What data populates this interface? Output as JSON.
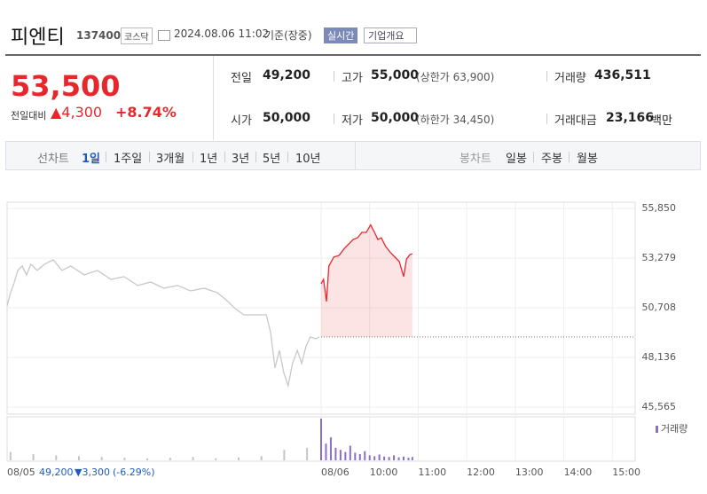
{
  "header": {
    "title": "피엔티",
    "code": "137400",
    "market": "코스닥",
    "datetime": "2024.08.06 11:02",
    "basis": "기준(장중)",
    "realtime": "실시간",
    "company": "기업개요"
  },
  "quote": {
    "price": "53,500",
    "change_label": "전일대비",
    "change": "▲4,300",
    "rate": "+8.74%",
    "cells": [
      {
        "label": "전일",
        "value": "49,200"
      },
      {
        "label": "고가",
        "value": "55,000",
        "note": "(상한가 63,900)"
      },
      {
        "label": "거래량",
        "value": "436,511"
      },
      {
        "label": "시가",
        "value": "50,000"
      },
      {
        "label": "저가",
        "value": "50,000",
        "note": "(하한가 34,450)"
      },
      {
        "label": "거래대금",
        "value": "23,166",
        "note": "백만"
      }
    ]
  },
  "tabs": {
    "line": "선차트",
    "line_periods": [
      "1일",
      "1주일",
      "3개월",
      "1년",
      "3년",
      "5년",
      "10년"
    ],
    "candle": "봉차트",
    "candle_periods": [
      "일봉",
      "주봉",
      "월봉"
    ]
  },
  "prev_day": {
    "close": "49,200",
    "change": "▼3,300",
    "rate": "(-6.29%)"
  },
  "chart_data": {
    "type": "line",
    "xlim": [
      -6.47,
      6.47
    ],
    "ylim": [
      45565,
      55850
    ],
    "xticks": [
      {
        "value": -6.47,
        "label": "08/05"
      },
      {
        "value": 0,
        "label": "08/06"
      },
      {
        "value": 1,
        "label": "10:00"
      },
      {
        "value": 2,
        "label": "11:00"
      },
      {
        "value": 3,
        "label": "12:00"
      },
      {
        "value": 4,
        "label": "13:00"
      },
      {
        "value": 5,
        "label": "14:00"
      },
      {
        "value": 6,
        "label": "15:00"
      }
    ],
    "yticks": [
      {
        "value": 55850,
        "label": "55,850"
      },
      {
        "value": 53279,
        "label": "53,279"
      },
      {
        "value": 50708,
        "label": "50,708"
      },
      {
        "value": 48136,
        "label": "48,136"
      },
      {
        "value": 45565,
        "label": "45,565"
      }
    ],
    "grid": true,
    "baseline": 49200,
    "series": [
      {
        "color": "#c8c8c8",
        "fill": false,
        "x": [
          -6.47,
          -6.4,
          -6.33,
          -6.25,
          -6.16,
          -6.07,
          -5.98,
          -5.85,
          -5.7,
          -5.52,
          -5.34,
          -5.16,
          -4.88,
          -4.61,
          -4.33,
          -4.06,
          -3.78,
          -3.51,
          -3.24,
          -2.96,
          -2.69,
          -2.41,
          -2.14,
          -1.96,
          -1.77,
          -1.59,
          -1.32,
          -1.13,
          -1.04,
          -0.95,
          -0.86,
          -0.77,
          -0.68,
          -0.59,
          -0.49,
          -0.4,
          -0.31,
          -0.22,
          -0.11,
          -0.04
        ],
        "values": [
          50800,
          51490,
          51950,
          52640,
          52870,
          52410,
          52960,
          52640,
          52960,
          53190,
          52640,
          52870,
          52410,
          52640,
          52180,
          52320,
          51860,
          52040,
          51720,
          51860,
          51580,
          51720,
          51490,
          51120,
          50660,
          50340,
          50340,
          50340,
          49420,
          47590,
          48500,
          47360,
          46670,
          47820,
          48500,
          47820,
          48730,
          49200,
          49100,
          49200
        ]
      },
      {
        "color": "#e6282d",
        "fill": true,
        "x": [
          0,
          0.05,
          0.11,
          0.16,
          0.26,
          0.37,
          0.48,
          0.57,
          0.66,
          0.75,
          0.84,
          0.93,
          1.02,
          1.1,
          1.17,
          1.24,
          1.33,
          1.43,
          1.52,
          1.61,
          1.7,
          1.76,
          1.83,
          1.88
        ],
        "values": [
          51950,
          52180,
          51030,
          52870,
          53330,
          53420,
          53780,
          54010,
          54240,
          54330,
          54610,
          54610,
          55000,
          54610,
          54240,
          54330,
          53880,
          53560,
          53330,
          53100,
          52320,
          53230,
          53460,
          53500
        ]
      }
    ],
    "volume": {
      "label": "거래량",
      "ylim": [
        0,
        100
      ],
      "series": [
        {
          "color": "#c4c4c4",
          "x": [
            -6.4,
            -5.93,
            -5.46,
            -4.99,
            -4.52,
            -4.05,
            -3.58,
            -3.11,
            -2.64,
            -2.17,
            -1.7,
            -1.23,
            -0.76,
            -0.29
          ],
          "values": [
            20,
            15,
            12,
            10,
            8,
            6,
            5,
            6,
            8,
            5,
            7,
            10,
            25,
            30
          ]
        },
        {
          "color": "#8a6fc6",
          "x": [
            0,
            0.1,
            0.2,
            0.3,
            0.4,
            0.5,
            0.6,
            0.7,
            0.8,
            0.9,
            1.0,
            1.1,
            1.2,
            1.3,
            1.4,
            1.5,
            1.6,
            1.7,
            1.8,
            1.88
          ],
          "values": [
            100,
            40,
            55,
            30,
            25,
            20,
            35,
            18,
            15,
            22,
            12,
            10,
            14,
            9,
            8,
            12,
            7,
            9,
            6,
            8
          ]
        }
      ]
    }
  }
}
